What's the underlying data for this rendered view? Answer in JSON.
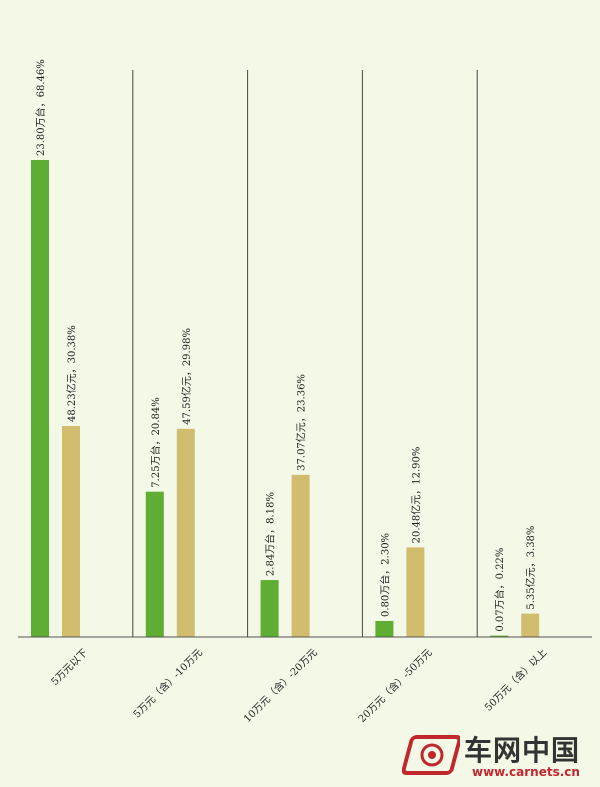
{
  "chart_data": {
    "type": "bar",
    "categories": [
      "5万元以下",
      "5万元（含）-10万元",
      "10万元（含）-20万元",
      "20万元（含）-50万元",
      "50万元（含）以上"
    ],
    "series": [
      {
        "values": [
          23.8,
          7.25,
          2.84,
          0.8,
          0.07
        ],
        "labels": [
          "23.80万台，68.46%",
          "7.25万台，20.84%",
          "2.84万台，8.18%",
          "0.80万台，2.30%",
          "0.07万台，0.22%"
        ]
      },
      {
        "values": [
          48.23,
          47.59,
          37.07,
          20.48,
          5.35
        ],
        "labels": [
          "48.23亿元，30.38%",
          "47.59亿元，29.98%",
          "37.07亿元，23.36%",
          "20.48亿元，12.90%",
          "5.35亿元，3.38%"
        ]
      }
    ],
    "colors": [
      "#5fad33",
      "#d2bd6e"
    ],
    "grid": "vertical separators",
    "legend": "bottom-right"
  },
  "watermark": {
    "brand": "车网中国",
    "url": "www.carnets.cn"
  }
}
